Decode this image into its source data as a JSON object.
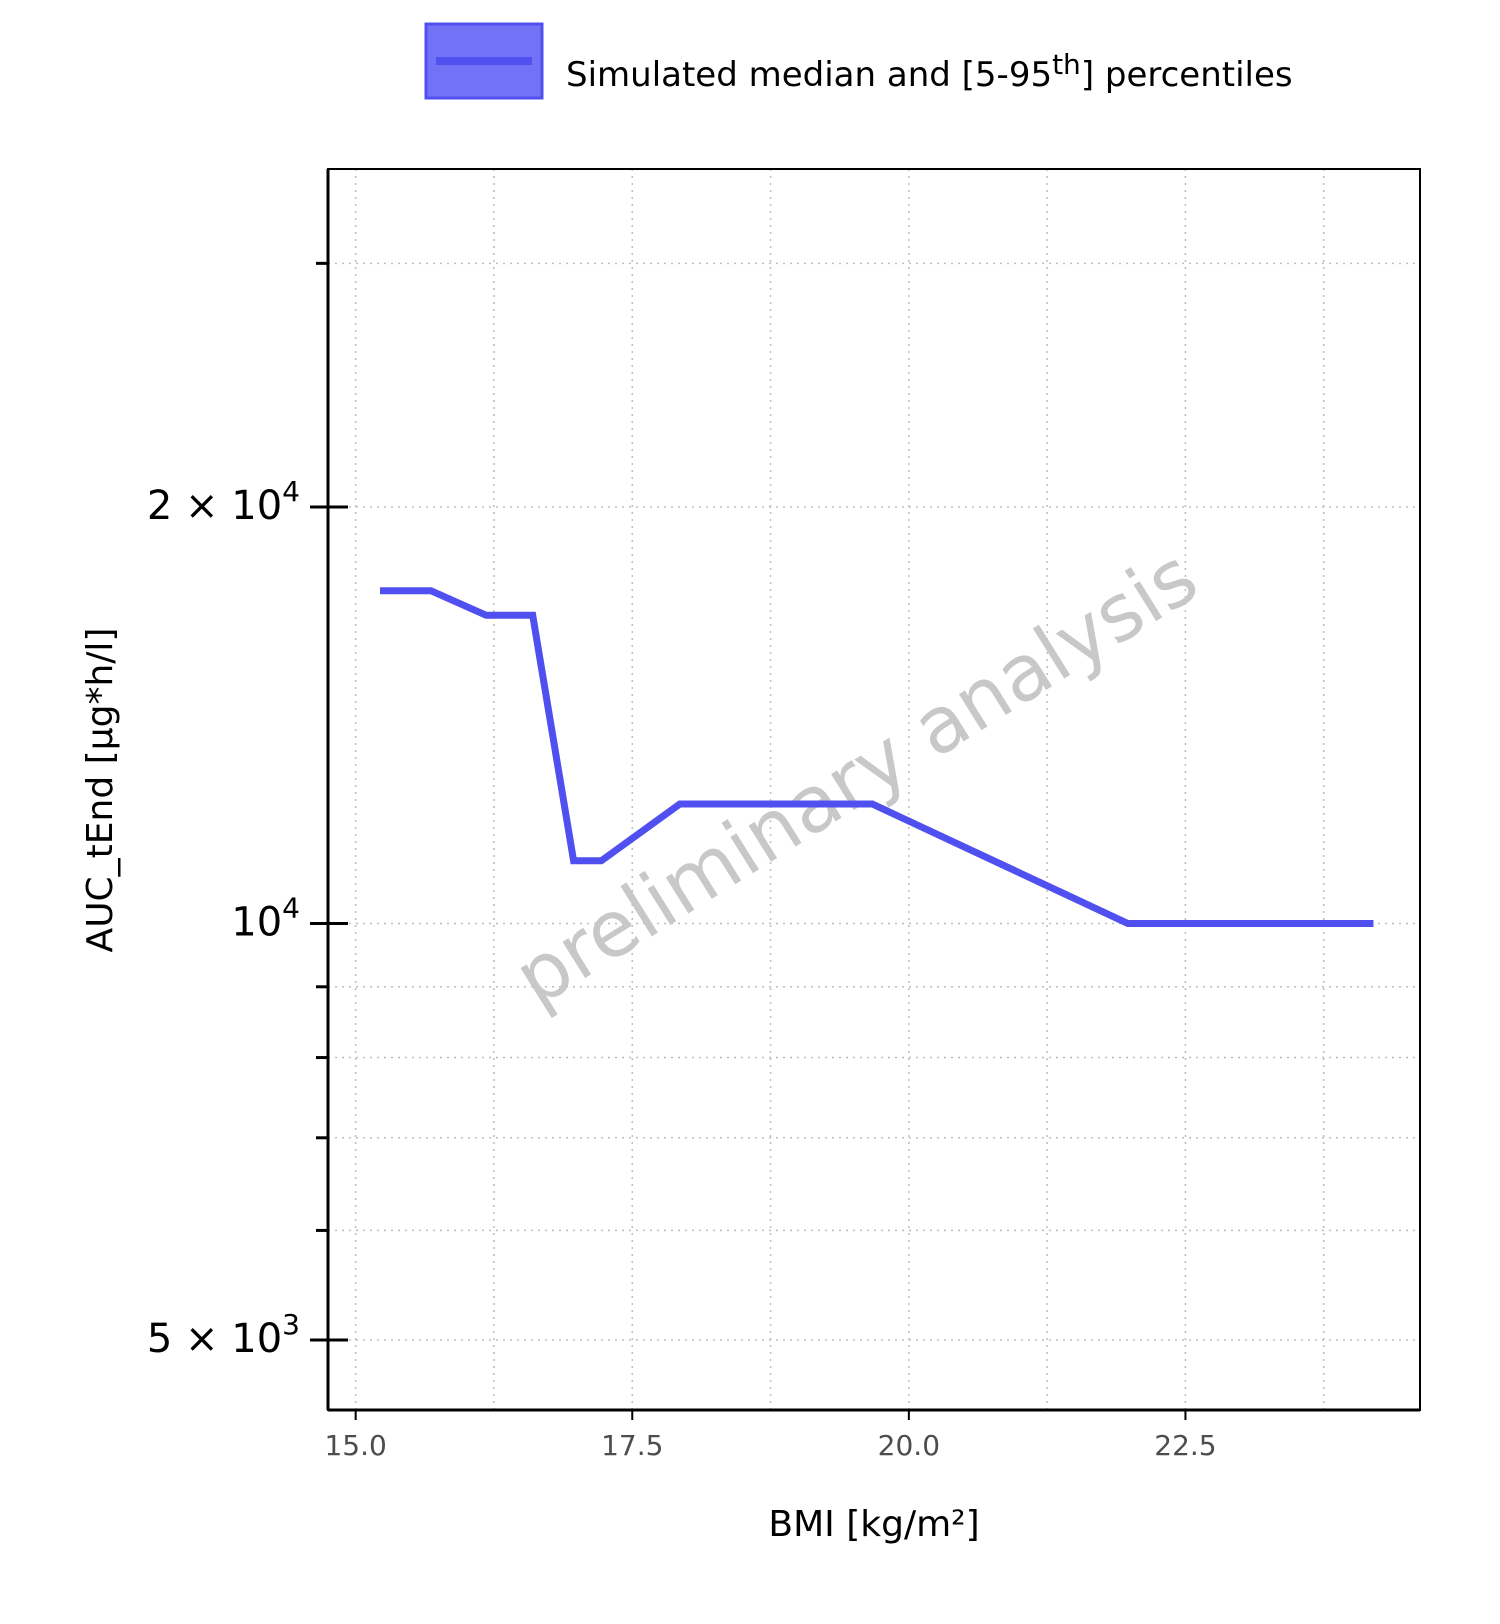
{
  "chart_data": {
    "type": "line",
    "legend": {
      "label_main": "Simulated median and [5-95",
      "label_sup": "th",
      "label_end": "] percentiles",
      "placement": "top"
    },
    "xlabel": "BMI [kg/m²]",
    "ylabel": "AUC_tEnd [µg*h/l]",
    "x_ticks": [
      {
        "value": 15.0,
        "label": "15.0"
      },
      {
        "value": 17.5,
        "label": "17.5"
      },
      {
        "value": 20.0,
        "label": "20.0"
      },
      {
        "value": 22.5,
        "label": "22.5"
      }
    ],
    "y_ticks": [
      {
        "value": 5000,
        "base": "5 × 10",
        "exp": "3"
      },
      {
        "value": 10000,
        "base": "10",
        "exp": "4"
      },
      {
        "value": 20000,
        "base": "2 × 10",
        "exp": "4"
      }
    ],
    "y_minor_ticks": [
      6000,
      7000,
      8000,
      9000,
      30000
    ],
    "xlim": [
      14.75,
      24.62
    ],
    "ylim": [
      4450,
      35100
    ],
    "yscale": "log",
    "grid": true,
    "series": [
      {
        "name": "Simulated median and [5-95th] percentiles",
        "color": "#5050f0",
        "x": [
          15.22,
          15.68,
          16.18,
          16.6,
          16.97,
          17.22,
          17.93,
          19.67,
          21.98,
          24.2
        ],
        "y": [
          17400,
          17400,
          16700,
          16700,
          11100,
          11100,
          12200,
          12200,
          10000,
          10000
        ]
      }
    ],
    "watermark": "preliminary analysis"
  }
}
